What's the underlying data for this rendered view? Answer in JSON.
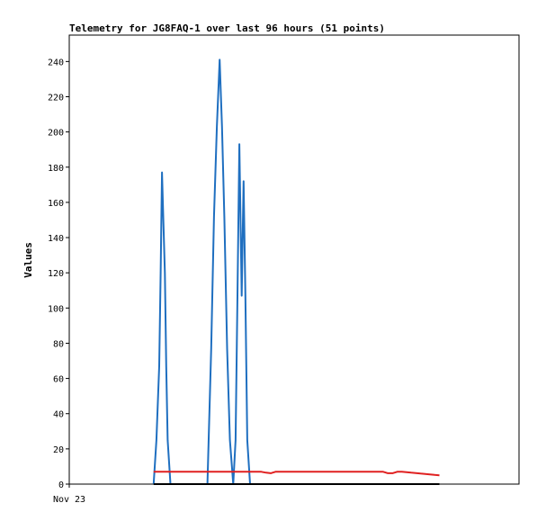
{
  "chart_data": {
    "type": "line",
    "title": "Telemetry for JG8FAQ-1 over last 96 hours (51 points)",
    "xlabel": "",
    "ylabel": "Values",
    "x_tick_labels": [
      "Nov 23"
    ],
    "ylim": [
      0,
      255
    ],
    "xlim": [
      0,
      96
    ],
    "y_ticks": [
      0,
      20,
      40,
      60,
      80,
      100,
      120,
      140,
      160,
      180,
      200,
      220,
      240
    ],
    "grid": false,
    "legend": "none",
    "series": [
      {
        "color": "#1f6fc0",
        "x": [
          18.0,
          18.6,
          19.2,
          19.5,
          19.8,
          20.1,
          20.4,
          20.7,
          21.0,
          21.6,
          29.5,
          30.3,
          30.9,
          31.5,
          32.1,
          32.6,
          33.1,
          33.7,
          34.3,
          35.0,
          35.5,
          35.9,
          36.3,
          36.8,
          37.2,
          37.6,
          38.0,
          38.6,
          39.0,
          39.8
        ],
        "y": [
          0,
          25,
          67,
          120,
          177,
          148,
          120,
          67,
          25,
          0,
          0,
          77,
          152,
          203,
          241,
          203,
          152,
          77,
          25,
          0,
          25,
          107,
          193,
          107,
          172,
          107,
          25,
          0,
          0,
          0
        ]
      },
      {
        "color": "#e02020",
        "x": [
          18.0,
          22.0,
          26.0,
          30.0,
          34.0,
          38.0,
          40.0,
          41.0,
          42.0,
          43.0,
          44.0,
          50.0,
          56.0,
          62.0,
          67.0,
          68.0,
          69.0,
          70.0,
          71.0,
          72.0,
          73.0,
          74.0,
          75.0,
          76.0,
          77.0,
          78.0,
          79.0
        ],
        "y": [
          7,
          7,
          7,
          7,
          7,
          7,
          7,
          7,
          6.5,
          6.2,
          7,
          7,
          7,
          7,
          7,
          6.2,
          6.2,
          7,
          7,
          6.8,
          6.5,
          6.3,
          6,
          5.8,
          5.5,
          5.2,
          5
        ]
      },
      {
        "color": "#000000",
        "x": [
          18.0,
          40.0,
          60.0,
          79.0
        ],
        "y": [
          0,
          0,
          0,
          0
        ]
      }
    ]
  }
}
